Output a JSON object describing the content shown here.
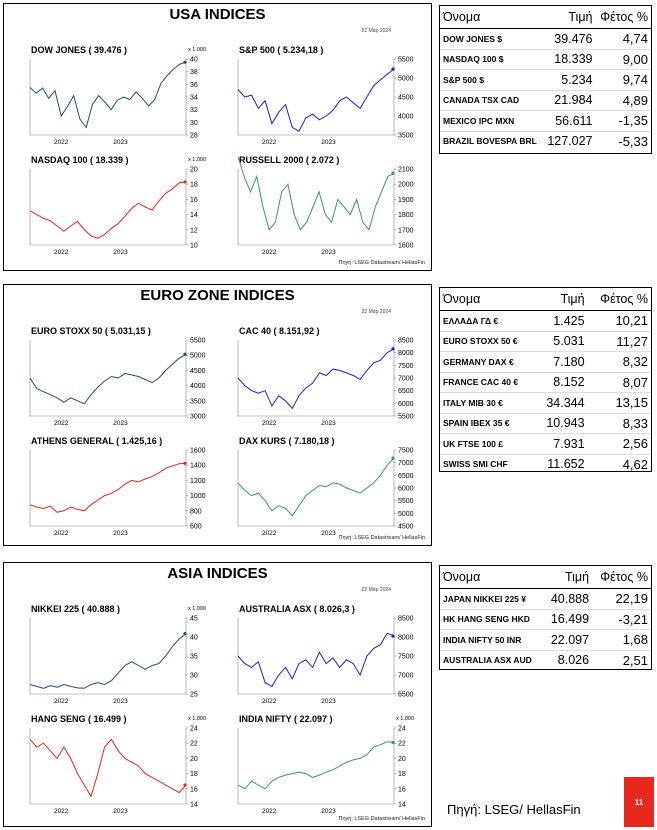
{
  "sections": [
    {
      "title": "USA INDICES",
      "date": "22 Μαρ 2024",
      "source": "Πηγή: LSEG Datastream/ HellasFin",
      "charts": [
        {
          "title": "DOW JONES ( 39.476 )",
          "scale": "x 1.000",
          "color": "#1f4e79",
          "ticks": [
            "40",
            "38",
            "36",
            "34",
            "32",
            "30",
            "28"
          ],
          "xlabels": [
            "2022",
            "2023"
          ]
        },
        {
          "title": "S&P 500  ( 5.234,18 )",
          "scale": "",
          "color": "#1f1fd0",
          "ticks": [
            "5500",
            "5000",
            "4500",
            "4000",
            "3500"
          ],
          "xlabels": [
            "2022",
            "2023"
          ]
        },
        {
          "title": "NASDAQ 100 ( 18.339 )",
          "scale": "x 1.000",
          "color": "#e8271d",
          "ticks": [
            "20",
            "18",
            "16",
            "14",
            "12",
            "10"
          ],
          "xlabels": [
            "2022",
            "2023"
          ]
        },
        {
          "title": "RUSSELL 2000 ( 2.072 )",
          "scale": "",
          "color": "#3a9a5b",
          "ticks": [
            "2100",
            "2000",
            "1900",
            "1800",
            "1700",
            "1600"
          ],
          "xlabels": [
            "2022",
            "2023"
          ]
        }
      ],
      "table": {
        "headers": [
          "Όνομα",
          "Τιμή",
          "Φέτος %"
        ],
        "rows": [
          [
            "DOW JONES $",
            "39.476",
            "4,74"
          ],
          [
            "NASDAQ 100 $",
            "18.339",
            "9,00"
          ],
          [
            "S&P 500 $",
            "5.234",
            "9,74"
          ],
          [
            "CANADA TSX CAD",
            "21.984",
            "4,89"
          ],
          [
            "MEXICO IPC MXN",
            "56.611",
            "-1,35"
          ],
          [
            "BRAZIL BOVESPA BRL",
            "127.027",
            "-5,33"
          ]
        ]
      }
    },
    {
      "title": "EURO ZONE INDICES",
      "date": "22 Μαρ 2024",
      "source": "Πηγή: LSEG Datastream/ HellasFin",
      "charts": [
        {
          "title": "EURO STOXX 50 ( 5.031,15 )",
          "scale": "",
          "color": "#1f4e79",
          "ticks": [
            "5500",
            "5000",
            "4500",
            "4000",
            "3500",
            "3000"
          ],
          "xlabels": [
            "2022",
            "2023"
          ]
        },
        {
          "title": "CAC 40  ( 8.151,92 )",
          "scale": "",
          "color": "#1f1fd0",
          "ticks": [
            "8500",
            "8000",
            "7500",
            "7000",
            "6500",
            "6000",
            "5500"
          ],
          "xlabels": [
            "2022",
            "2023"
          ]
        },
        {
          "title": "ATHENS GENERAL ( 1.425,16 )",
          "scale": "",
          "color": "#e8271d",
          "ticks": [
            "1600",
            "1400",
            "1200",
            "1000",
            "800",
            "600"
          ],
          "xlabels": [
            "2022",
            "2023"
          ]
        },
        {
          "title": "DAX KURS  ( 7.180,18 )",
          "scale": "",
          "color": "#3a9a5b",
          "ticks": [
            "7500",
            "7000",
            "6500",
            "6000",
            "5500",
            "5000",
            "4500"
          ],
          "xlabels": [
            "2022",
            "2023"
          ]
        }
      ],
      "table": {
        "headers": [
          "Όνομα",
          "Τιμή",
          "Φέτος %"
        ],
        "rows": [
          [
            "ΕΛΛΑΔΑ ΓΔ €",
            "1.425",
            "10,21"
          ],
          [
            "EURO STOXX 50 €",
            "5.031",
            "11,27"
          ],
          [
            "GERMANY DAX €",
            "7.180",
            "8,32"
          ],
          [
            "FRANCE CAC 40 €",
            "8.152",
            "8,07"
          ],
          [
            "ITALY MIB 30 €",
            "34.344",
            "13,15"
          ],
          [
            "SPAIN IBEX 35 €",
            "10.943",
            "8,33"
          ],
          [
            "UK FTSE 100 £",
            "7.931",
            "2,56"
          ],
          [
            "SWISS SMI CHF",
            "11.652",
            "4,62"
          ]
        ]
      }
    },
    {
      "title": "ASIA INDICES",
      "date": "22 Μαρ 2024",
      "source": "Πηγή: LSEG Datastream/ HellasFin",
      "charts": [
        {
          "title": "NIKKEI 225 ( 40.888 )",
          "scale": "x 1.000",
          "color": "#1f4e79",
          "ticks": [
            "45",
            "40",
            "35",
            "30",
            "25"
          ],
          "xlabels": [
            "2022",
            "2023"
          ]
        },
        {
          "title": "AUSTRALIA ASX  ( 8.026,3 )",
          "scale": "",
          "color": "#1f1fd0",
          "ticks": [
            "8500",
            "8000",
            "7500",
            "7000",
            "6500"
          ],
          "xlabels": [
            "2022",
            "2023"
          ]
        },
        {
          "title": "HANG SENG ( 16.499 )",
          "scale": "x 1.000",
          "color": "#e8271d",
          "ticks": [
            "24",
            "22",
            "20",
            "18",
            "16",
            "14"
          ],
          "xlabels": [
            "2022",
            "2023"
          ]
        },
        {
          "title": "INDIA NIFTY  ( 22.097 )",
          "scale": "x 1.000",
          "color": "#3a9a5b",
          "ticks": [
            "24",
            "22",
            "20",
            "18",
            "16",
            "14"
          ],
          "xlabels": [
            "2022",
            "2023"
          ]
        }
      ],
      "table": {
        "headers": [
          "Όνομα",
          "Τιμή",
          "Φέτος %"
        ],
        "rows": [
          [
            "JAPAN NIKKEI 225 ¥",
            "40.888",
            "22,19"
          ],
          [
            "HK HANG SENG HKD",
            "16.499",
            "-3,21"
          ],
          [
            "INDIA NIFTY 50 INR",
            "22.097",
            "1,68"
          ],
          [
            "AUSTRALIA ASX AUD",
            "8.026",
            "2,51"
          ]
        ]
      }
    }
  ],
  "footer": {
    "source": "Πηγή: LSEG/ HellasFin",
    "page": "11"
  },
  "chart_data": [
    {
      "type": "line",
      "title": "DOW JONES ( 39.476 )",
      "ylabel": "x 1.000",
      "ylim": [
        28,
        40
      ],
      "series": [
        {
          "values": [
            35.5,
            34.6,
            35.4,
            33.8,
            35.0,
            31.0,
            32.5,
            34.2,
            30.5,
            29.2,
            32.8,
            34.2,
            33.2,
            32.0,
            33.5,
            34.0,
            33.6,
            34.8,
            33.8,
            32.6,
            33.6,
            36.2,
            37.4,
            38.4,
            39.2,
            39.5
          ]
        }
      ]
    },
    {
      "type": "line",
      "title": "S&P 500  ( 5.234,18 )",
      "ylim": [
        3500,
        5500
      ],
      "series": [
        {
          "values": [
            4700,
            4500,
            4550,
            4200,
            4400,
            3800,
            4100,
            4300,
            3700,
            3600,
            3950,
            4050,
            3900,
            4000,
            4150,
            4400,
            4500,
            4350,
            4200,
            4500,
            4800,
            4950,
            5100,
            5234
          ]
        }
      ]
    },
    {
      "type": "line",
      "title": "NASDAQ 100 ( 18.339 )",
      "ylabel": "x 1.000",
      "ylim": [
        10,
        20
      ],
      "series": [
        {
          "values": [
            14.5,
            14.0,
            13.5,
            13.2,
            12.5,
            11.8,
            12.5,
            13.1,
            12.0,
            11.2,
            10.9,
            11.4,
            12.2,
            12.8,
            13.8,
            14.8,
            15.5,
            15.0,
            14.6,
            15.8,
            16.8,
            17.4,
            18.2,
            18.3
          ]
        }
      ]
    },
    {
      "type": "line",
      "title": "RUSSELL 2000 ( 2.072 )",
      "ylim": [
        1600,
        2100
      ],
      "series": [
        {
          "values": [
            2180,
            2050,
            1950,
            2050,
            1850,
            1700,
            1750,
            1950,
            2000,
            1800,
            1700,
            1750,
            1850,
            1950,
            1800,
            1750,
            1900,
            1850,
            1800,
            1900,
            1750,
            1700,
            1850,
            1950,
            2050,
            2072
          ]
        }
      ]
    },
    {
      "type": "line",
      "title": "EURO STOXX 50 ( 5.031,15 )",
      "ylim": [
        3000,
        5500
      ],
      "series": [
        {
          "values": [
            4250,
            3900,
            3800,
            3700,
            3600,
            3450,
            3600,
            3500,
            3400,
            3700,
            3950,
            4150,
            4300,
            4250,
            4400,
            4350,
            4300,
            4200,
            4100,
            4250,
            4500,
            4700,
            4900,
            5031
          ]
        }
      ]
    },
    {
      "type": "line",
      "title": "CAC 40  ( 8.151,92 )",
      "ylim": [
        5500,
        8500
      ],
      "series": [
        {
          "values": [
            7000,
            6700,
            6500,
            6400,
            6500,
            5900,
            6300,
            6100,
            5800,
            6300,
            6600,
            6800,
            7200,
            7100,
            7350,
            7300,
            7200,
            7100,
            6950,
            7300,
            7600,
            7700,
            8000,
            8152
          ]
        }
      ]
    },
    {
      "type": "line",
      "title": "ATHENS GENERAL ( 1.425,16 )",
      "ylim": [
        600,
        1600
      ],
      "series": [
        {
          "values": [
            880,
            850,
            830,
            860,
            780,
            800,
            850,
            820,
            800,
            880,
            940,
            1000,
            1030,
            1080,
            1150,
            1200,
            1180,
            1220,
            1250,
            1300,
            1360,
            1390,
            1420,
            1425
          ]
        }
      ]
    },
    {
      "type": "line",
      "title": "DAX KURS  ( 7.180,18 )",
      "ylim": [
        4500,
        7500
      ],
      "series": [
        {
          "values": [
            6200,
            5900,
            5700,
            5800,
            5500,
            5100,
            5300,
            5200,
            4900,
            5300,
            5700,
            5900,
            6100,
            6050,
            6200,
            6150,
            6000,
            5900,
            5800,
            6000,
            6200,
            6500,
            6900,
            7180
          ]
        }
      ]
    },
    {
      "type": "line",
      "title": "NIKKEI 225 ( 40.888 )",
      "ylabel": "x 1.000",
      "ylim": [
        25,
        45
      ],
      "series": [
        {
          "values": [
            27.5,
            27.0,
            26.5,
            27.2,
            26.8,
            27.5,
            27.0,
            26.6,
            26.5,
            27.5,
            28.0,
            27.5,
            28.5,
            30.5,
            32.5,
            33.5,
            32.5,
            31.5,
            32.5,
            33.0,
            35.0,
            37.5,
            39.5,
            40.9
          ]
        }
      ]
    },
    {
      "type": "line",
      "title": "AUSTRALIA ASX  ( 8.026,3 )",
      "ylim": [
        6500,
        8500
      ],
      "series": [
        {
          "values": [
            7500,
            7300,
            7200,
            7350,
            6800,
            6700,
            7000,
            7200,
            6900,
            7300,
            7400,
            7200,
            7600,
            7300,
            7450,
            7200,
            7400,
            7300,
            7000,
            7500,
            7700,
            7800,
            8100,
            8026
          ]
        }
      ]
    },
    {
      "type": "line",
      "title": "HANG SENG ( 16.499 )",
      "ylabel": "x 1.000",
      "ylim": [
        14,
        24
      ],
      "series": [
        {
          "values": [
            22.5,
            21.5,
            22.0,
            21.0,
            20.0,
            21.5,
            20.0,
            18.0,
            16.5,
            15.0,
            18.0,
            21.5,
            22.5,
            21.0,
            20.0,
            19.5,
            19.0,
            18.0,
            17.5,
            17.0,
            16.5,
            16.0,
            15.5,
            16.5
          ]
        }
      ]
    },
    {
      "type": "line",
      "title": "INDIA NIFTY  ( 22.097 )",
      "ylabel": "x 1.000",
      "ylim": [
        14,
        24
      ],
      "series": [
        {
          "values": [
            16.5,
            16.0,
            17.0,
            16.5,
            16.0,
            17.0,
            17.5,
            17.8,
            18.0,
            18.2,
            18.0,
            17.5,
            17.8,
            18.2,
            18.5,
            19.0,
            19.5,
            19.8,
            20.0,
            20.5,
            21.5,
            21.8,
            22.2,
            22.1
          ]
        }
      ]
    }
  ]
}
